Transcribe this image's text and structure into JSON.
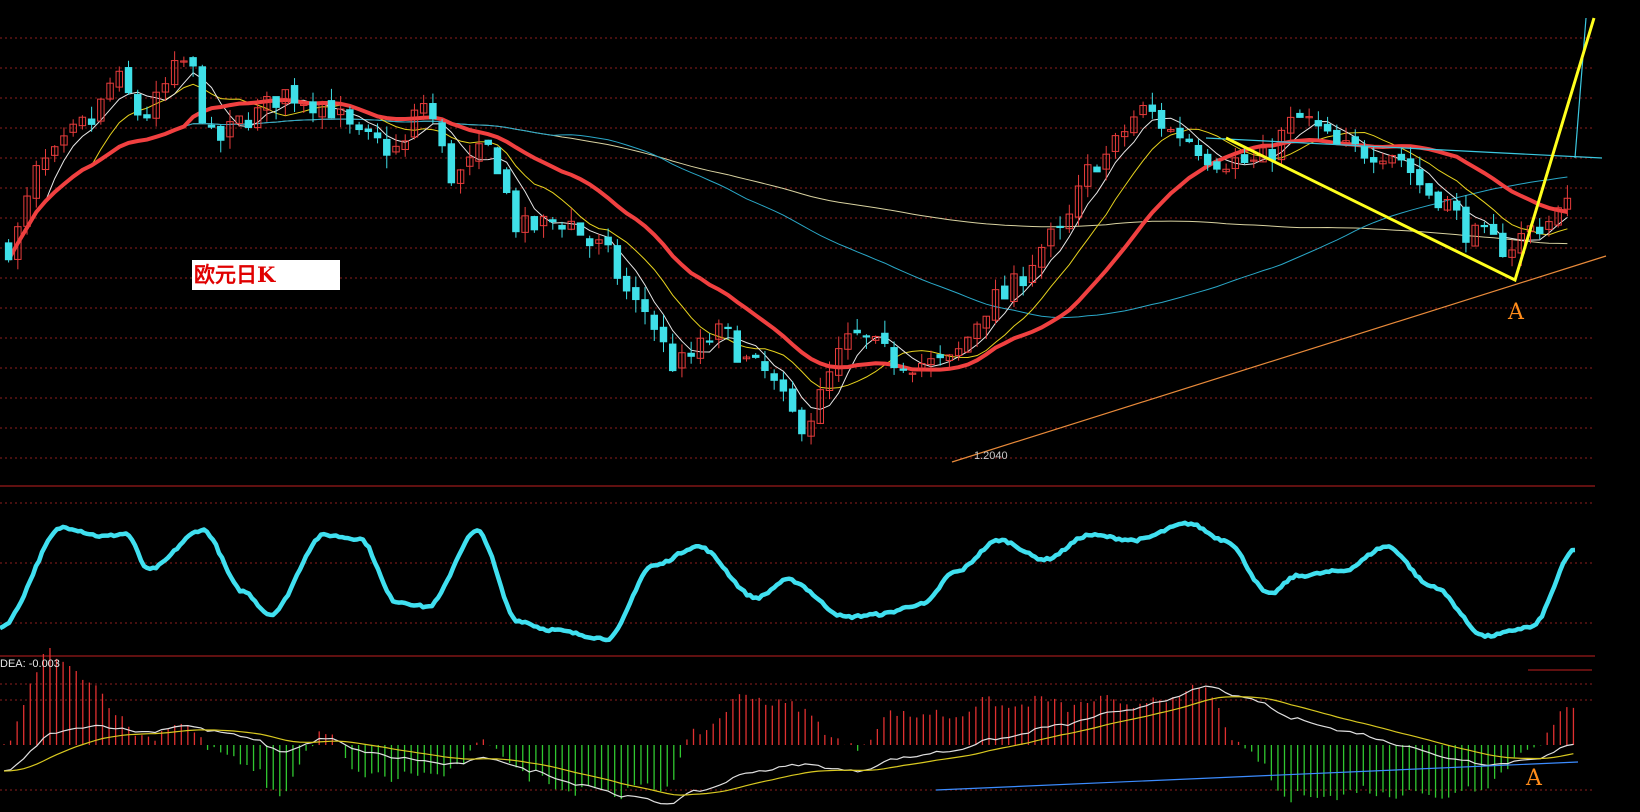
{
  "title": "欧元日K",
  "low_label": "1.2040",
  "indicator": {
    "dea_label": "DEA: -0.003"
  },
  "annotations": {
    "mark_a_main": "A",
    "mark_a_macd": "A"
  },
  "colors": {
    "background": "#000000",
    "up": "#e83c3c",
    "down": "#3fe0e8",
    "ma_white": "#e6e6e6",
    "ma_yellow": "#e6d21e",
    "ma_red": "#f04040",
    "ma_cyan": "#2aa8c8",
    "ma_cream": "#d8d2a0",
    "trend_yellow": "#ffff1e",
    "trend_orange": "#e88a3a",
    "trend_cyan": "#3cc8e0",
    "oscillator": "#40e0f0",
    "macd_pos": "#e03030",
    "macd_neg": "#30c830",
    "macd_line": "#e0e0e0",
    "signal_line": "#d8c820",
    "macd_trend": "#3c8cff",
    "grid": "#8c1e1e"
  },
  "chart_data": {
    "type": "candlestick",
    "candle_count": 170,
    "price_low": 1.204,
    "close_anchors": [
      [
        0,
        1.246
      ],
      [
        8,
        1.265
      ],
      [
        18,
        1.274
      ],
      [
        24,
        1.284
      ],
      [
        30,
        1.276
      ],
      [
        40,
        1.288
      ],
      [
        46,
        1.27
      ],
      [
        55,
        1.276
      ],
      [
        62,
        1.281
      ],
      [
        70,
        1.279
      ],
      [
        80,
        1.27
      ],
      [
        88,
        1.268
      ],
      [
        93,
        1.279
      ],
      [
        100,
        1.262
      ],
      [
        108,
        1.268
      ],
      [
        115,
        1.25
      ],
      [
        125,
        1.252
      ],
      [
        132,
        1.246
      ],
      [
        142,
        1.232
      ],
      [
        150,
        1.219
      ],
      [
        160,
        1.226
      ],
      [
        168,
        1.218
      ],
      [
        178,
        1.206
      ],
      [
        190,
        1.225
      ],
      [
        200,
        1.22
      ],
      [
        210,
        1.219
      ],
      [
        222,
        1.234
      ],
      [
        235,
        1.248
      ],
      [
        245,
        1.266
      ],
      [
        255,
        1.277
      ],
      [
        262,
        1.272
      ],
      [
        272,
        1.266
      ],
      [
        280,
        1.265
      ],
      [
        290,
        1.275
      ],
      [
        300,
        1.268
      ],
      [
        310,
        1.268
      ],
      [
        320,
        1.258
      ],
      [
        330,
        1.248
      ],
      [
        336,
        1.246
      ],
      [
        344,
        1.251
      ],
      [
        350,
        1.255
      ]
    ],
    "oscillator_anchors": [
      [
        0,
        0.1
      ],
      [
        14,
        0.88
      ],
      [
        23,
        0.81
      ],
      [
        28,
        0.83
      ],
      [
        33,
        0.55
      ],
      [
        45,
        0.86
      ],
      [
        54,
        0.38
      ],
      [
        60,
        0.2
      ],
      [
        72,
        0.82
      ],
      [
        80,
        0.79
      ],
      [
        88,
        0.3
      ],
      [
        95,
        0.26
      ],
      [
        106,
        0.85
      ],
      [
        115,
        0.15
      ],
      [
        122,
        0.08
      ],
      [
        135,
        0.01
      ],
      [
        145,
        0.58
      ],
      [
        155,
        0.73
      ],
      [
        168,
        0.33
      ],
      [
        175,
        0.47
      ],
      [
        188,
        0.18
      ],
      [
        195,
        0.2
      ],
      [
        205,
        0.28
      ],
      [
        212,
        0.53
      ],
      [
        222,
        0.78
      ],
      [
        232,
        0.63
      ],
      [
        242,
        0.82
      ],
      [
        252,
        0.78
      ],
      [
        264,
        0.91
      ],
      [
        272,
        0.78
      ],
      [
        282,
        0.36
      ],
      [
        288,
        0.5
      ],
      [
        298,
        0.54
      ],
      [
        308,
        0.73
      ],
      [
        318,
        0.42
      ],
      [
        330,
        0.03
      ],
      [
        340,
        0.1
      ],
      [
        350,
        0.71
      ]
    ],
    "macd_anchors": [
      [
        0,
        -0.004
      ],
      [
        12,
        0.002
      ],
      [
        20,
        0.003
      ],
      [
        32,
        0.002
      ],
      [
        40,
        0.003
      ],
      [
        48,
        0.002
      ],
      [
        55,
        0.001
      ],
      [
        62,
        -0.001
      ],
      [
        72,
        0.001
      ],
      [
        80,
        -0.001
      ],
      [
        88,
        -0.002
      ],
      [
        100,
        -0.003
      ],
      [
        108,
        -0.002
      ],
      [
        118,
        -0.004
      ],
      [
        128,
        -0.006
      ],
      [
        140,
        -0.008
      ],
      [
        148,
        -0.009
      ],
      [
        155,
        -0.007
      ],
      [
        168,
        -0.004
      ],
      [
        178,
        -0.003
      ],
      [
        190,
        -0.004
      ],
      [
        200,
        -0.002
      ],
      [
        210,
        -0.001
      ],
      [
        222,
        0.001
      ],
      [
        235,
        0.003
      ],
      [
        248,
        0.005
      ],
      [
        260,
        0.007
      ],
      [
        268,
        0.009
      ],
      [
        278,
        0.007
      ],
      [
        288,
        0.004
      ],
      [
        300,
        0.002
      ],
      [
        312,
        0.0
      ],
      [
        322,
        -0.002
      ],
      [
        332,
        -0.003
      ],
      [
        342,
        -0.002
      ],
      [
        350,
        0.0
      ]
    ],
    "macd_range": [
      -0.01,
      0.01
    ],
    "price_range": [
      1.195,
      1.3
    ]
  }
}
